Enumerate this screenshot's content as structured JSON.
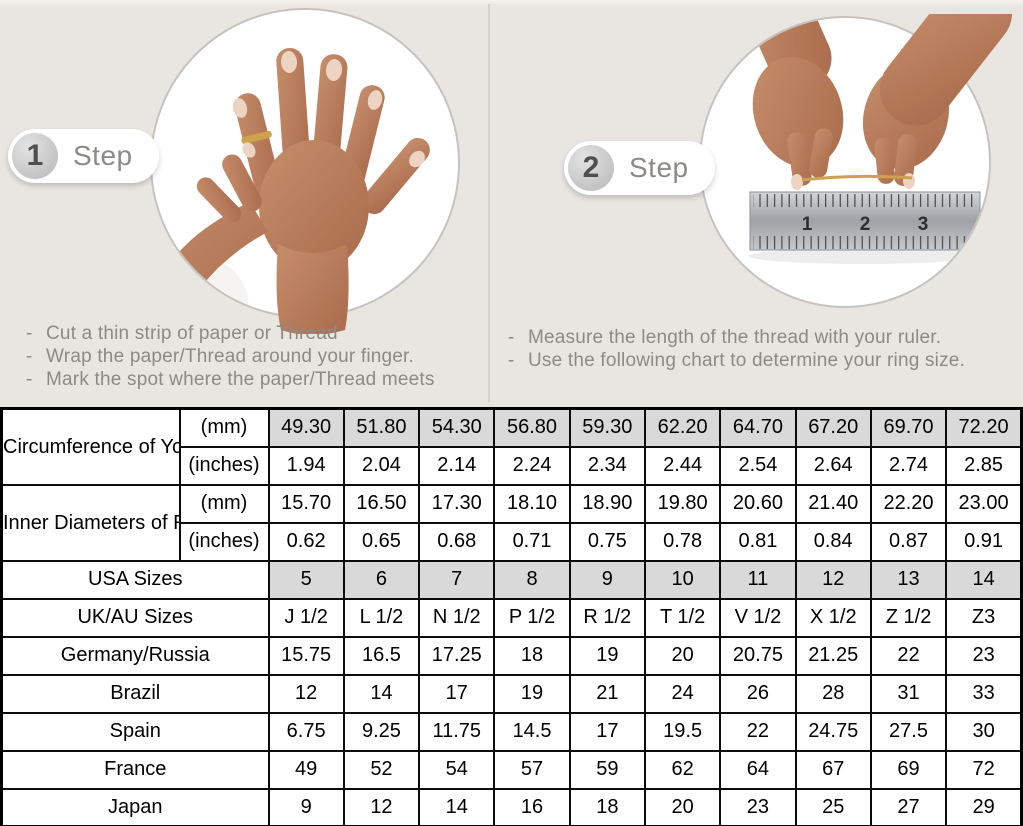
{
  "steps": [
    {
      "number": "1",
      "label": "Step",
      "instructions": [
        "Cut a thin strip of paper or Thread",
        "Wrap the paper/Thread around your finger.",
        "Mark the spot where the paper/Thread meets"
      ]
    },
    {
      "number": "2",
      "label": "Step",
      "instructions": [
        "Measure the length of the thread with your ruler.",
        "Use the following chart to determine your ring size."
      ]
    }
  ],
  "ruler": {
    "numbers": [
      "1",
      "2",
      "3"
    ]
  },
  "table": {
    "groups": [
      {
        "label": "Circumference\nof Your Finger",
        "rows": [
          {
            "unit": "(mm)",
            "shaded": true,
            "values": [
              "49.30",
              "51.80",
              "54.30",
              "56.80",
              "59.30",
              "62.20",
              "64.70",
              "67.20",
              "69.70",
              "72.20"
            ]
          },
          {
            "unit": "(inches)",
            "shaded": false,
            "values": [
              "1.94",
              "2.04",
              "2.14",
              "2.24",
              "2.34",
              "2.44",
              "2.54",
              "2.64",
              "2.74",
              "2.85"
            ]
          }
        ]
      },
      {
        "label": "Inner Diameters\nof Rings",
        "rows": [
          {
            "unit": "(mm)",
            "shaded": false,
            "values": [
              "15.70",
              "16.50",
              "17.30",
              "18.10",
              "18.90",
              "19.80",
              "20.60",
              "21.40",
              "22.20",
              "23.00"
            ]
          },
          {
            "unit": "(inches)",
            "shaded": false,
            "values": [
              "0.62",
              "0.65",
              "0.68",
              "0.71",
              "0.75",
              "0.78",
              "0.81",
              "0.84",
              "0.87",
              "0.91"
            ]
          }
        ]
      }
    ],
    "size_rows": [
      {
        "label": "USA Sizes",
        "shaded": true,
        "values": [
          "5",
          "6",
          "7",
          "8",
          "9",
          "10",
          "11",
          "12",
          "13",
          "14"
        ]
      },
      {
        "label": "UK/AU Sizes",
        "shaded": false,
        "values": [
          "J 1/2",
          "L 1/2",
          "N 1/2",
          "P 1/2",
          "R 1/2",
          "T 1/2",
          "V 1/2",
          "X 1/2",
          "Z 1/2",
          "Z3"
        ]
      },
      {
        "label": "Germany/Russia",
        "shaded": false,
        "values": [
          "15.75",
          "16.5",
          "17.25",
          "18",
          "19",
          "20",
          "20.75",
          "21.25",
          "22",
          "23"
        ]
      },
      {
        "label": "Brazil",
        "shaded": false,
        "values": [
          "12",
          "14",
          "17",
          "19",
          "21",
          "24",
          "26",
          "28",
          "31",
          "33"
        ]
      },
      {
        "label": "Spain",
        "shaded": false,
        "values": [
          "6.75",
          "9.25",
          "11.75",
          "14.5",
          "17",
          "19.5",
          "22",
          "24.75",
          "27.5",
          "30"
        ]
      },
      {
        "label": "France",
        "shaded": false,
        "values": [
          "49",
          "52",
          "54",
          "57",
          "59",
          "62",
          "64",
          "67",
          "69",
          "72"
        ]
      },
      {
        "label": "Japan",
        "shaded": false,
        "values": [
          "9",
          "12",
          "14",
          "16",
          "18",
          "20",
          "23",
          "25",
          "27",
          "29"
        ]
      }
    ]
  },
  "colors": {
    "background": "#e9e6e1",
    "table_shaded": "#d9d9d9",
    "text_muted": "#8d8a86",
    "gold": "#cfa14e"
  }
}
